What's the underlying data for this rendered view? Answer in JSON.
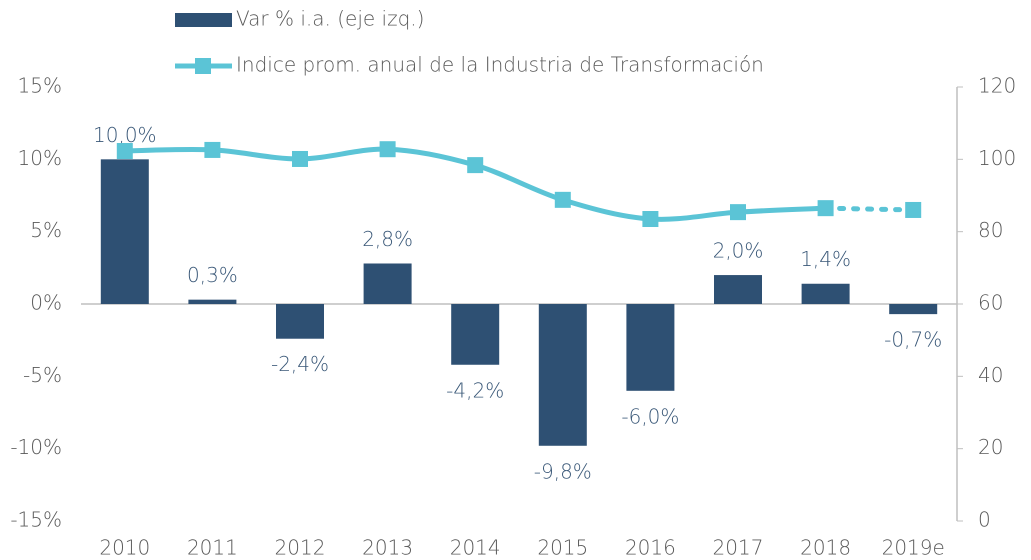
{
  "chart_data": {
    "type": "bar_line",
    "categories": [
      "2010",
      "2011",
      "2012",
      "2013",
      "2014",
      "2015",
      "2016",
      "2017",
      "2018",
      "2019e"
    ],
    "series": [
      {
        "name": "Var % i.a. (eje izq.)",
        "type": "bar",
        "color": "#2e5073",
        "values": [
          10.0,
          0.3,
          -2.4,
          2.8,
          -4.2,
          -9.8,
          -6.0,
          2.0,
          1.4,
          -0.7
        ],
        "value_labels": [
          "10,0%",
          "0,3%",
          "-2,4%",
          "2,8%",
          "-4,2%",
          "-9,8%",
          "-6,0%",
          "2,0%",
          "1,4%",
          "-0,7%"
        ]
      },
      {
        "name": "Indice prom. anual de la Industria de Transformación",
        "type": "line",
        "axis": "y2",
        "color": "#5bc4d6",
        "values": [
          102.3,
          102.6,
          100.1,
          102.8,
          98.4,
          88.8,
          83.5,
          85.4,
          86.5,
          86.0
        ],
        "dotted_last_segment": true
      }
    ],
    "ylim": [
      -15,
      15
    ],
    "yticks": [
      {
        "value": -15,
        "label": "-15%"
      },
      {
        "value": -10,
        "label": "-10%"
      },
      {
        "value": -5,
        "label": "-5%"
      },
      {
        "value": 0,
        "label": "0%"
      },
      {
        "value": 5,
        "label": "5%"
      },
      {
        "value": 10,
        "label": "10%"
      },
      {
        "value": 15,
        "label": "15%"
      }
    ],
    "y2lim": [
      0,
      120
    ],
    "y2ticks": [
      0,
      20,
      40,
      60,
      80,
      100,
      120
    ],
    "legend": "top"
  }
}
